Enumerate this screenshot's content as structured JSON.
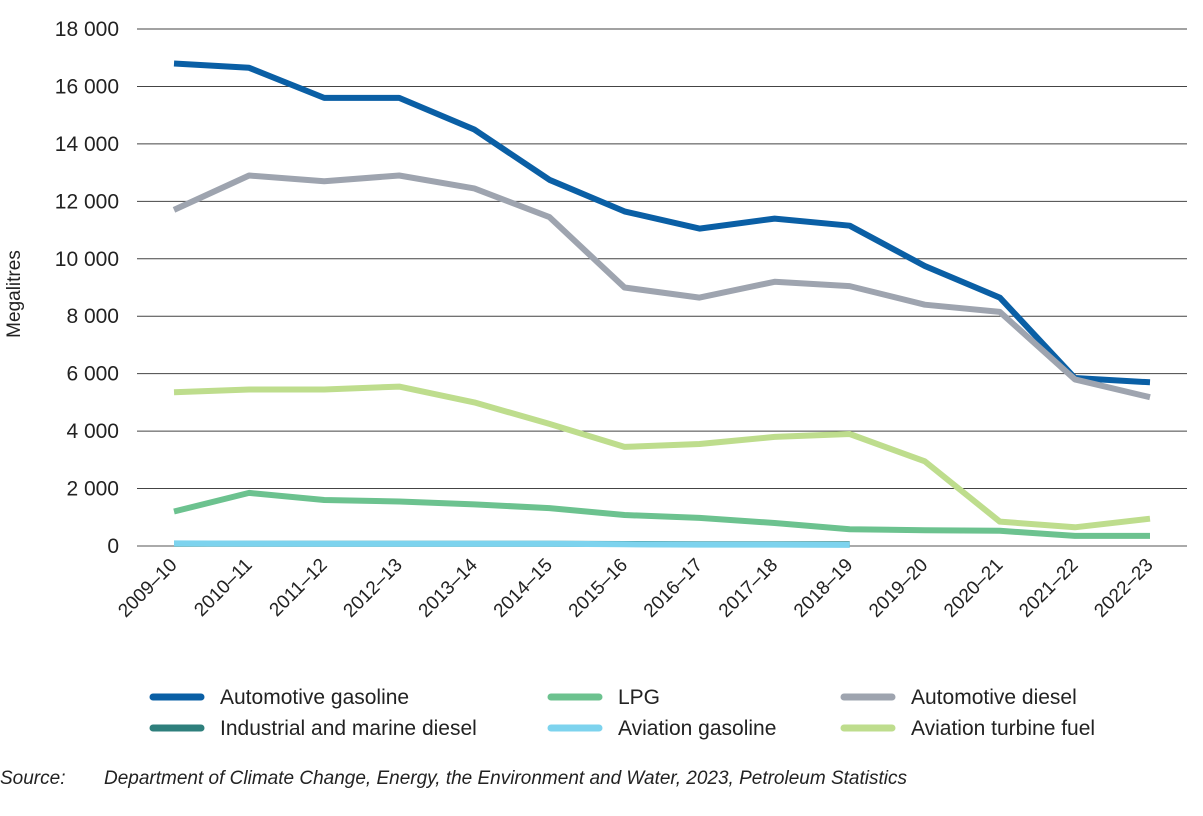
{
  "chart_data": {
    "type": "line",
    "title": "",
    "xlabel": "",
    "ylabel": "Megalitres",
    "ylim": [
      0,
      18000
    ],
    "yticks": [
      0,
      2000,
      4000,
      6000,
      8000,
      10000,
      12000,
      14000,
      16000,
      18000
    ],
    "ytick_labels": [
      "0",
      "2 000",
      "4 000",
      "6 000",
      "8 000",
      "10 000",
      "12 000",
      "14 000",
      "16 000",
      "18 000"
    ],
    "categories": [
      "2009–10",
      "2010–11",
      "2011–12",
      "2012–13",
      "2013–14",
      "2014–15",
      "2015–16",
      "2016–17",
      "2017–18",
      "2018–19",
      "2019–20",
      "2020–21",
      "2021–22",
      "2022–23"
    ],
    "series": [
      {
        "name": "Automotive gasoline",
        "color": "#0a5fa5",
        "values": [
          16800,
          16650,
          15600,
          15600,
          14500,
          12750,
          11650,
          11050,
          11400,
          11150,
          9750,
          8650,
          5850,
          5700
        ]
      },
      {
        "name": "LPG",
        "color": "#6cc28f",
        "values": [
          1200,
          1850,
          1600,
          1550,
          1450,
          1320,
          1080,
          980,
          800,
          580,
          550,
          530,
          350,
          350
        ]
      },
      {
        "name": "Automotive diesel",
        "color": "#9ea4af",
        "values": [
          11700,
          12900,
          12700,
          12900,
          12450,
          11450,
          9000,
          8650,
          9200,
          9050,
          8400,
          8150,
          5800,
          5180
        ]
      },
      {
        "name": "Industrial and marine diesel",
        "color": "#2e7f7c",
        "values": [
          80,
          80,
          80,
          80,
          80,
          80,
          70,
          60,
          60,
          60,
          null,
          null,
          null,
          null
        ]
      },
      {
        "name": "Aviation gasoline",
        "color": "#7dd3ee",
        "values": [
          90,
          85,
          80,
          80,
          80,
          80,
          60,
          50,
          50,
          40,
          null,
          null,
          null,
          null
        ]
      },
      {
        "name": "Aviation turbine fuel",
        "color": "#bedd8d",
        "values": [
          5350,
          5450,
          5450,
          5550,
          5000,
          4250,
          3450,
          3550,
          3800,
          3900,
          2950,
          850,
          650,
          950
        ]
      }
    ],
    "legend_position": "bottom",
    "grid": "horizontal"
  },
  "source": {
    "label": "Source:",
    "text": "Department of Climate Change, Energy, the Environment and Water, 2023, Petroleum Statistics"
  }
}
